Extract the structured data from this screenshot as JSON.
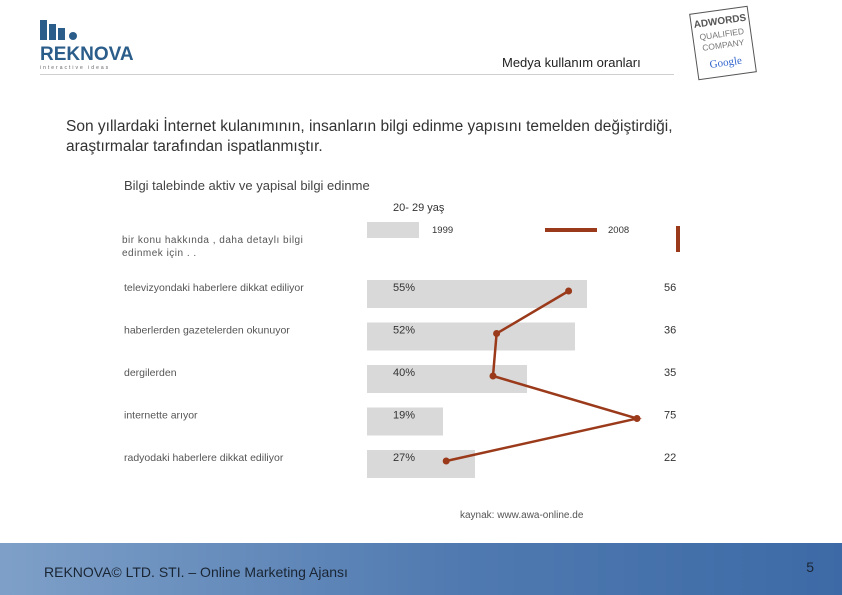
{
  "header": {
    "brand": "REKNOVA",
    "brand_tagline": "interactive ideas",
    "title": "Medya kullanım oranları",
    "badge_lines": [
      "ADWORDS",
      "QUALIFIED",
      "COMPANY"
    ],
    "badge_google": "Google"
  },
  "intro": "Son yıllardaki İnternet kulanımının, insanların bilgi edinme yapısını temelden değiştirdiği, araştırmalar tarafından ispatlanmıştır.",
  "chart_data": {
    "type": "bar",
    "title": "Bilgi talebinde aktiv ve yapisal bilgi edinme",
    "subtitle": "20- 29 yaş",
    "categories": [
      "televizyondaki haberlere dikkat ediliyor",
      "haberlerden gazetelerden okunuyor",
      "dergilerden",
      "internette arıyor",
      "radyodaki haberlere dikkat ediliyor"
    ],
    "header_row_label": "bir konu hakkında , daha detaylı bilgi edinmek için . .",
    "series": [
      {
        "name": "1999",
        "type": "bar",
        "values": [
          55,
          52,
          40,
          19,
          27
        ],
        "labels": [
          "55%",
          "52%",
          "40%",
          "19%",
          "27%"
        ]
      },
      {
        "name": "2008",
        "type": "line",
        "values": [
          56,
          36,
          35,
          75,
          22
        ],
        "labels": [
          "56",
          "36",
          "35",
          "75",
          "22"
        ]
      }
    ],
    "source": "kaynak: www.awa-online.de",
    "colors": {
      "bar": "#d9d9d9",
      "line": "#9a3a1a"
    }
  },
  "footer": {
    "text": "REKNOVA© LTD. STI. – Online Marketing Ajansı",
    "page_number": "5"
  }
}
